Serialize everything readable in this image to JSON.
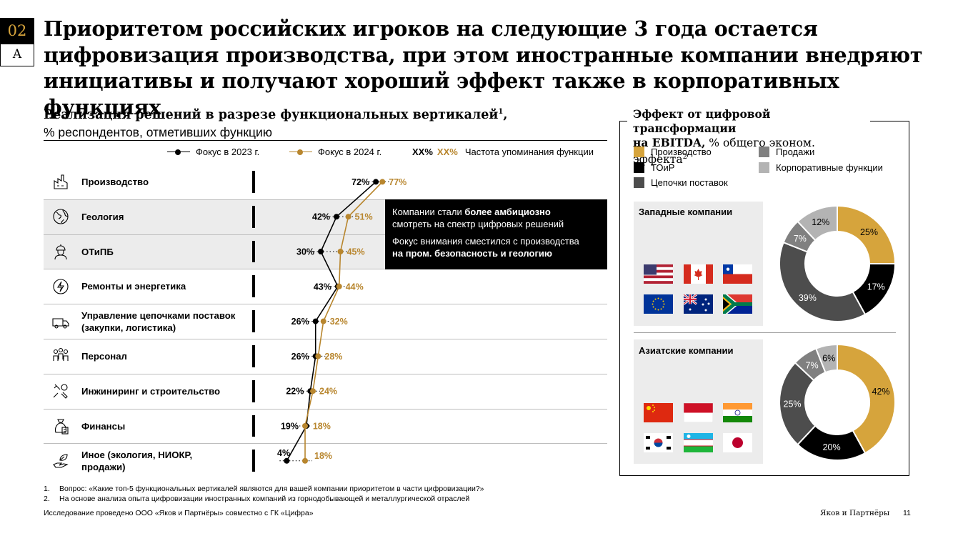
{
  "header": {
    "section_number": "02",
    "section_letter": "A",
    "title": "Приоритетом российских игроков на следующие 3 года остается цифровизация производства, при этом иностранные компании внедряют инициативы и получают хороший эффект также в корпоративных функциях"
  },
  "left": {
    "title": "Реализация решений в разрезе функциональных вертикалей",
    "title_sup": "1",
    "title_suffix": ",",
    "subtitle": "% респондентов, отметивших функцию",
    "legend": {
      "series_2023": "Фокус в 2023 г.",
      "series_2024": "Фокус в 2024 г.",
      "xx1": "XX%",
      "xx2": "XX%",
      "freq": "Частота упоминания функции"
    },
    "callout": {
      "p1_plain": "Компании стали ",
      "p1_bold": "более амбициозно",
      "p1_rest": "смотреть на спектр цифровых решений",
      "p2_plain": "Фокус внимания сместился с производства",
      "p2_bold": "на пром. безопасность и геологию"
    }
  },
  "chart_data": [
    {
      "type": "line",
      "orientation": "horizontal",
      "categories": [
        "Производство",
        "Геология",
        "ОТиПБ",
        "Ремонты и энергетика",
        "Управление цепочками поставок (закупки, логистика)",
        "Персонал",
        "Инжиниринг и строительство",
        "Финансы",
        "Иное (экология, НИОКР, продажи)"
      ],
      "category_lines": [
        [
          "Производство"
        ],
        [
          "Геология"
        ],
        [
          "ОТиПБ"
        ],
        [
          "Ремонты и энергетика"
        ],
        [
          "Управление цепочками поставок",
          "(закупки, логистика)"
        ],
        [
          "Персонал"
        ],
        [
          "Инжиниринг и строительство"
        ],
        [
          "Финансы"
        ],
        [
          "Иное (экология, НИОКР,",
          "продажи)"
        ]
      ],
      "icons": [
        "factory-icon",
        "globe-icon",
        "worker-helmet-icon",
        "power-icon",
        "truck-icon",
        "people-icon",
        "wrench-gear-icon",
        "money-bag-icon",
        "leaf-hand-icon"
      ],
      "series": [
        {
          "name": "Фокус в 2023 г.",
          "color": "#000000",
          "values": [
            72,
            42,
            30,
            43,
            26,
            26,
            22,
            19,
            4
          ],
          "labels": [
            "72%",
            "42%",
            "30%",
            "43%",
            "26%",
            "26%",
            "22%",
            "19%",
            "4%"
          ]
        },
        {
          "name": "Фокус в 2024 г.",
          "color": "#b8862e",
          "values": [
            77,
            51,
            45,
            44,
            32,
            28,
            24,
            18,
            18
          ],
          "labels": [
            "77%",
            "51%",
            "45%",
            "44%",
            "32%",
            "28%",
            "24%",
            "18%",
            "18%"
          ]
        }
      ]
    },
    {
      "type": "pie",
      "title": "Западные компании",
      "labels": [
        "Производство",
        "ТОиР",
        "Цепочки поставок",
        "Продажи",
        "Корпоративные функции"
      ],
      "values": [
        25,
        17,
        39,
        7,
        12
      ],
      "value_labels": [
        "25%",
        "17%",
        "39%",
        "7%",
        "12%"
      ],
      "colors": [
        "#d6a43c",
        "#000000",
        "#4d4d4d",
        "#808080",
        "#b3b3b3"
      ],
      "flags": [
        "us",
        "ca",
        "cl",
        "eu",
        "au",
        "za"
      ]
    },
    {
      "type": "pie",
      "title": "Азиатские компании",
      "labels": [
        "Производство",
        "ТОиР",
        "Цепочки поставок",
        "Продажи",
        "Корпоративные функции"
      ],
      "values": [
        42,
        20,
        25,
        7,
        6
      ],
      "value_labels": [
        "42%",
        "20%",
        "25%",
        "7%",
        "6%"
      ],
      "colors": [
        "#d6a43c",
        "#000000",
        "#4d4d4d",
        "#808080",
        "#b3b3b3"
      ],
      "flags": [
        "cn",
        "id",
        "in",
        "kr",
        "uz",
        "jp"
      ]
    }
  ],
  "right": {
    "title_bold_1": "Эффект от цифровой трансформации",
    "title_bold_2": "на EBITDA,",
    "title_plain": " % общего эконом. эффекта",
    "title_sup": "2",
    "legend": [
      "Производство",
      "ТОиР",
      "Цепочки поставок",
      "Продажи",
      "Корпоративные функции"
    ],
    "legend_colors": [
      "#d6a43c",
      "#000000",
      "#4d4d4d",
      "#808080",
      "#b3b3b3"
    ],
    "group_west": "Западные компании",
    "group_asia": "Азиатские компании"
  },
  "footnotes": {
    "n1": "1.",
    "t1": "Вопрос: «Какие топ-5 функциональных вертикалей являются для вашей компании приоритетом в части цифровизации?»",
    "n2": "2.",
    "t2": "На основе анализа опыта цифровизации иностранных компаний из горнодобывающей и металлургической отраслей",
    "source": "Исследование проведено ООО «Яков и Партнёры» совместно с ГК «Цифра»",
    "brand": "Яков и Партнёры",
    "page": "11"
  }
}
